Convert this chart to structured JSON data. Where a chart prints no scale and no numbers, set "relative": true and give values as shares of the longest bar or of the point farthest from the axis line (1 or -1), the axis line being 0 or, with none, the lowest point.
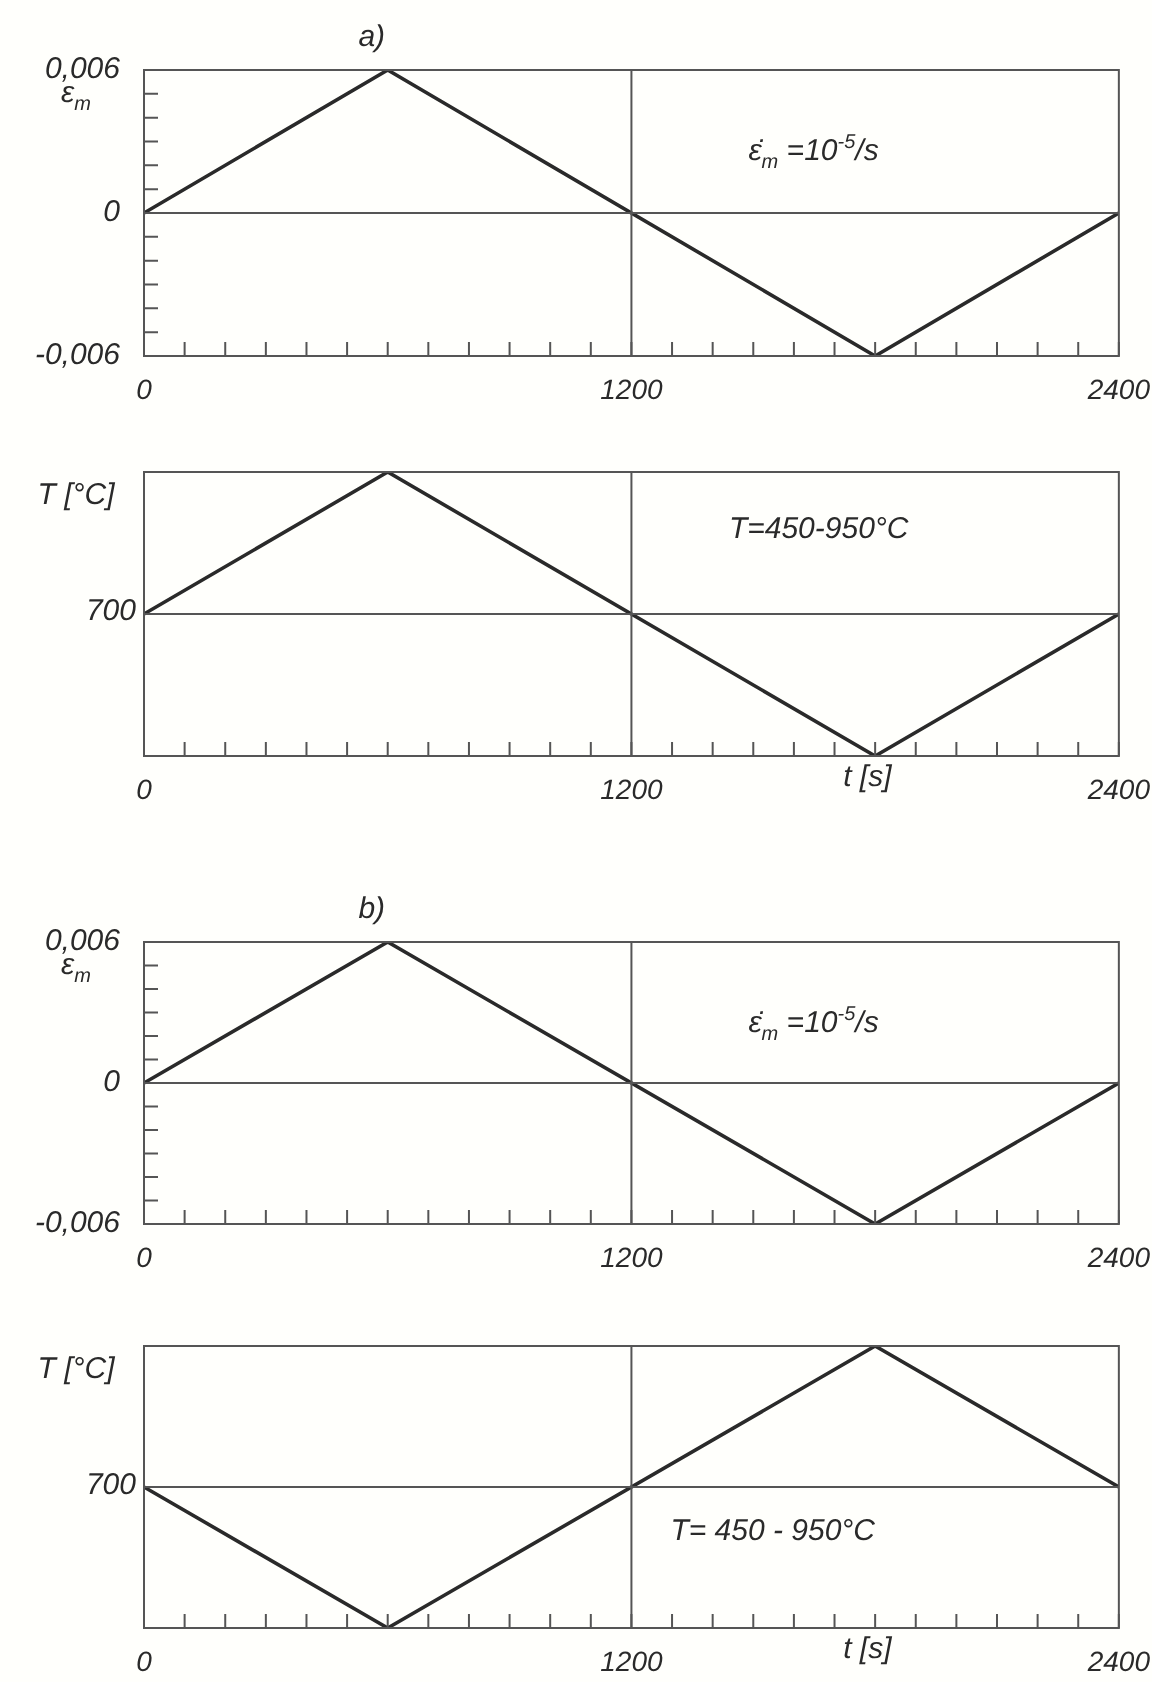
{
  "chart_data": [
    {
      "type": "line",
      "title": "a)",
      "ylabel": "ε$_{m}$",
      "x": [
        0,
        600,
        1800,
        2400
      ],
      "values": [
        0,
        0.006,
        -0.006,
        0
      ],
      "color": "#2a2a2a",
      "marker": "none",
      "legend": false,
      "xlim": [
        0,
        2400
      ],
      "xticks": [
        0,
        {
          "value": 100,
          "label": null
        },
        {
          "value": 200,
          "label": null
        },
        {
          "value": 300,
          "label": null
        },
        {
          "value": 400,
          "label": null
        },
        {
          "value": 500,
          "label": null
        },
        {
          "value": 600,
          "label": null
        },
        {
          "value": 700,
          "label": null
        },
        {
          "value": 800,
          "label": null
        },
        {
          "value": 900,
          "label": null
        },
        {
          "value": 1000,
          "label": null
        },
        {
          "value": 1100,
          "label": null
        },
        1200,
        {
          "value": 1300,
          "label": null
        },
        {
          "value": 1400,
          "label": null
        },
        {
          "value": 1500,
          "label": null
        },
        {
          "value": 1600,
          "label": null
        },
        {
          "value": 1700,
          "label": null
        },
        {
          "value": 1800,
          "label": null
        },
        {
          "value": 1900,
          "label": null
        },
        {
          "value": 2000,
          "label": null
        },
        {
          "value": 2100,
          "label": null
        },
        {
          "value": 2200,
          "label": null
        },
        {
          "value": 2300,
          "label": null
        },
        2400
      ],
      "ylim": [
        -0.006,
        0.006
      ],
      "yticks": [
        {
          "value": -0.006,
          "label": "-0,006"
        },
        {
          "value": -0.005,
          "label": null
        },
        {
          "value": -0.004,
          "label": null
        },
        {
          "value": -0.003,
          "label": null
        },
        {
          "value": -0.002,
          "label": null
        },
        {
          "value": -0.001,
          "label": null
        },
        0,
        {
          "value": 0.001,
          "label": null
        },
        {
          "value": 0.002,
          "label": null
        },
        {
          "value": 0.003,
          "label": null
        },
        {
          "value": 0.004,
          "label": null
        },
        {
          "value": 0.005,
          "label": null
        },
        {
          "value": 0.006,
          "label": "0,006"
        }
      ],
      "ref_lines": [
        {
          "axis": "x",
          "value": 1200
        },
        {
          "axis": "y",
          "value": 0
        }
      ],
      "annotations": [
        "ε̇$_{m}$ =10$^{-5}$/s"
      ]
    },
    {
      "type": "line",
      "ylabel": "T [°C]",
      "xlabel": "t [s]",
      "relative": true,
      "x": [
        0,
        600,
        1800,
        2400
      ],
      "values": [
        0.5,
        1,
        0,
        0.5
      ],
      "color": "#2a2a2a",
      "marker": "none",
      "legend": false,
      "xlim": [
        0,
        2400
      ],
      "xticks": [
        0,
        {
          "value": 100,
          "label": null
        },
        {
          "value": 200,
          "label": null
        },
        {
          "value": 300,
          "label": null
        },
        {
          "value": 400,
          "label": null
        },
        {
          "value": 500,
          "label": null
        },
        {
          "value": 600,
          "label": null
        },
        {
          "value": 700,
          "label": null
        },
        {
          "value": 800,
          "label": null
        },
        {
          "value": 900,
          "label": null
        },
        {
          "value": 1000,
          "label": null
        },
        {
          "value": 1100,
          "label": null
        },
        1200,
        {
          "value": 1300,
          "label": null
        },
        {
          "value": 1400,
          "label": null
        },
        {
          "value": 1500,
          "label": null
        },
        {
          "value": 1600,
          "label": null
        },
        {
          "value": 1700,
          "label": null
        },
        {
          "value": 1800,
          "label": null
        },
        {
          "value": 1900,
          "label": null
        },
        {
          "value": 2000,
          "label": null
        },
        {
          "value": 2100,
          "label": null
        },
        {
          "value": 2200,
          "label": null
        },
        {
          "value": 2300,
          "label": null
        },
        2400
      ],
      "ref_lines": [
        {
          "axis": "x",
          "value": 1200
        },
        {
          "axis": "y",
          "value": 0.5
        }
      ],
      "annotations": [
        "T=450-950°C",
        "700"
      ]
    },
    {
      "type": "line",
      "title": "b)",
      "ylabel": "ε$_{m}$",
      "x": [
        0,
        600,
        1800,
        2400
      ],
      "values": [
        0,
        0.006,
        -0.006,
        0
      ],
      "color": "#2a2a2a",
      "marker": "none",
      "legend": false,
      "xlim": [
        0,
        2400
      ],
      "xticks": [
        0,
        {
          "value": 100,
          "label": null
        },
        {
          "value": 200,
          "label": null
        },
        {
          "value": 300,
          "label": null
        },
        {
          "value": 400,
          "label": null
        },
        {
          "value": 500,
          "label": null
        },
        {
          "value": 600,
          "label": null
        },
        {
          "value": 700,
          "label": null
        },
        {
          "value": 800,
          "label": null
        },
        {
          "value": 900,
          "label": null
        },
        {
          "value": 1000,
          "label": null
        },
        {
          "value": 1100,
          "label": null
        },
        1200,
        {
          "value": 1300,
          "label": null
        },
        {
          "value": 1400,
          "label": null
        },
        {
          "value": 1500,
          "label": null
        },
        {
          "value": 1600,
          "label": null
        },
        {
          "value": 1700,
          "label": null
        },
        {
          "value": 1800,
          "label": null
        },
        {
          "value": 1900,
          "label": null
        },
        {
          "value": 2000,
          "label": null
        },
        {
          "value": 2100,
          "label": null
        },
        {
          "value": 2200,
          "label": null
        },
        {
          "value": 2300,
          "label": null
        },
        2400
      ],
      "ylim": [
        -0.006,
        0.006
      ],
      "yticks": [
        {
          "value": -0.006,
          "label": "-0,006"
        },
        {
          "value": -0.005,
          "label": null
        },
        {
          "value": -0.004,
          "label": null
        },
        {
          "value": -0.003,
          "label": null
        },
        {
          "value": -0.002,
          "label": null
        },
        {
          "value": -0.001,
          "label": null
        },
        0,
        {
          "value": 0.001,
          "label": null
        },
        {
          "value": 0.002,
          "label": null
        },
        {
          "value": 0.003,
          "label": null
        },
        {
          "value": 0.004,
          "label": null
        },
        {
          "value": 0.005,
          "label": null
        },
        {
          "value": 0.006,
          "label": "0,006"
        }
      ],
      "ref_lines": [
        {
          "axis": "x",
          "value": 1200
        },
        {
          "axis": "y",
          "value": 0
        }
      ],
      "annotations": [
        "ε̇$_{m}$ =10$^{-5}$/s"
      ]
    },
    {
      "type": "line",
      "ylabel": "T [°C]",
      "xlabel": "t [s]",
      "relative": true,
      "x": [
        0,
        600,
        1800,
        2400
      ],
      "values": [
        0.5,
        0,
        1,
        0.5
      ],
      "color": "#2a2a2a",
      "marker": "none",
      "legend": false,
      "xlim": [
        0,
        2400
      ],
      "xticks": [
        0,
        {
          "value": 100,
          "label": null
        },
        {
          "value": 200,
          "label": null
        },
        {
          "value": 300,
          "label": null
        },
        {
          "value": 400,
          "label": null
        },
        {
          "value": 500,
          "label": null
        },
        {
          "value": 600,
          "label": null
        },
        {
          "value": 700,
          "label": null
        },
        {
          "value": 800,
          "label": null
        },
        {
          "value": 900,
          "label": null
        },
        {
          "value": 1000,
          "label": null
        },
        {
          "value": 1100,
          "label": null
        },
        1200,
        {
          "value": 1300,
          "label": null
        },
        {
          "value": 1400,
          "label": null
        },
        {
          "value": 1500,
          "label": null
        },
        {
          "value": 1600,
          "label": null
        },
        {
          "value": 1700,
          "label": null
        },
        {
          "value": 1800,
          "label": null
        },
        {
          "value": 1900,
          "label": null
        },
        {
          "value": 2000,
          "label": null
        },
        {
          "value": 2100,
          "label": null
        },
        {
          "value": 2200,
          "label": null
        },
        {
          "value": 2300,
          "label": null
        },
        2400
      ],
      "ref_lines": [
        {
          "axis": "x",
          "value": 1200
        },
        {
          "axis": "y",
          "value": 0.5
        }
      ],
      "annotations": [
        "T= 450 - 950°C",
        "700"
      ]
    }
  ]
}
